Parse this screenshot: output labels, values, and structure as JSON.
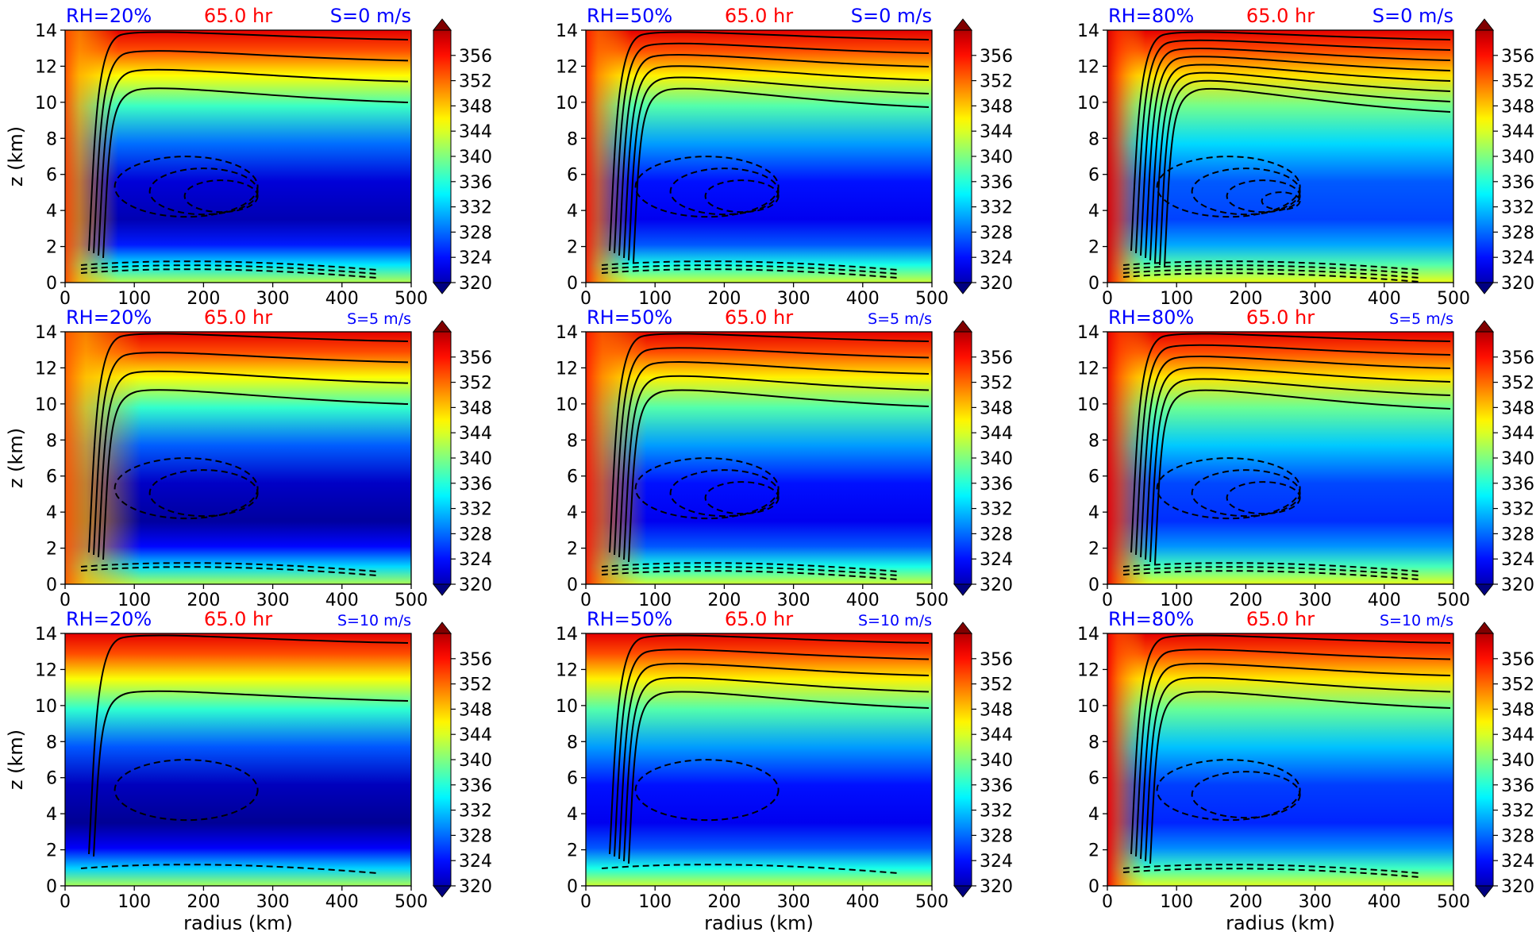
{
  "chart_data": {
    "type": "heatmap",
    "rows": [
      {
        "shear_label": "S=0 m/s",
        "panels": [
          {
            "rh_label": "RH=20%",
            "time_label": "65.0 hr",
            "dryness": 0.85,
            "core_width": 0.07,
            "solid_contours": 4,
            "dashed_contours": 3
          },
          {
            "rh_label": "RH=50%",
            "time_label": "65.0 hr",
            "dryness": 0.55,
            "core_width": 0.06,
            "solid_contours": 6,
            "dashed_contours": 3
          },
          {
            "rh_label": "RH=80%",
            "time_label": "65.0 hr",
            "dryness": 0.15,
            "core_width": 0.05,
            "solid_contours": 8,
            "dashed_contours": 4
          }
        ]
      },
      {
        "shear_label": "S=5 m/s",
        "panels": [
          {
            "rh_label": "RH=20%",
            "time_label": "65.0 hr",
            "dryness": 0.95,
            "core_width": 0.1,
            "solid_contours": 4,
            "dashed_contours": 2
          },
          {
            "rh_label": "RH=50%",
            "time_label": "65.0 hr",
            "dryness": 0.55,
            "core_width": 0.08,
            "solid_contours": 5,
            "dashed_contours": 3
          },
          {
            "rh_label": "RH=80%",
            "time_label": "65.0 hr",
            "dryness": 0.25,
            "core_width": 0.06,
            "solid_contours": 6,
            "dashed_contours": 3
          }
        ]
      },
      {
        "shear_label": "S=10 m/s",
        "panels": [
          {
            "rh_label": "RH=20%",
            "time_label": "65.0 hr",
            "dryness": 1.0,
            "core_width": 0.0,
            "solid_contours": 2,
            "dashed_contours": 1
          },
          {
            "rh_label": "RH=50%",
            "time_label": "65.0 hr",
            "dryness": 0.55,
            "core_width": 0.0,
            "solid_contours": 5,
            "dashed_contours": 1
          },
          {
            "rh_label": "RH=80%",
            "time_label": "65.0 hr",
            "dryness": 0.3,
            "core_width": 0.05,
            "solid_contours": 5,
            "dashed_contours": 2
          }
        ]
      }
    ],
    "x_axis": {
      "label": "radius (km)",
      "range": [
        0,
        500
      ],
      "ticks": [
        "0",
        "100",
        "200",
        "300",
        "400",
        "500"
      ]
    },
    "y_axis": {
      "label": "z (km)",
      "range": [
        0,
        14
      ],
      "ticks": [
        "0",
        "2",
        "4",
        "6",
        "8",
        "10",
        "12",
        "14"
      ]
    },
    "colorbar": {
      "range": [
        320,
        360
      ],
      "ticks": [
        "320",
        "324",
        "328",
        "332",
        "336",
        "340",
        "344",
        "348",
        "352",
        "356"
      ],
      "extend": "both"
    },
    "colors": {
      "rh_label": "#0000ff",
      "time_label": "#ff0000",
      "shear_label": "#0000ff",
      "contour": "#000000"
    },
    "colormap": "jet"
  }
}
